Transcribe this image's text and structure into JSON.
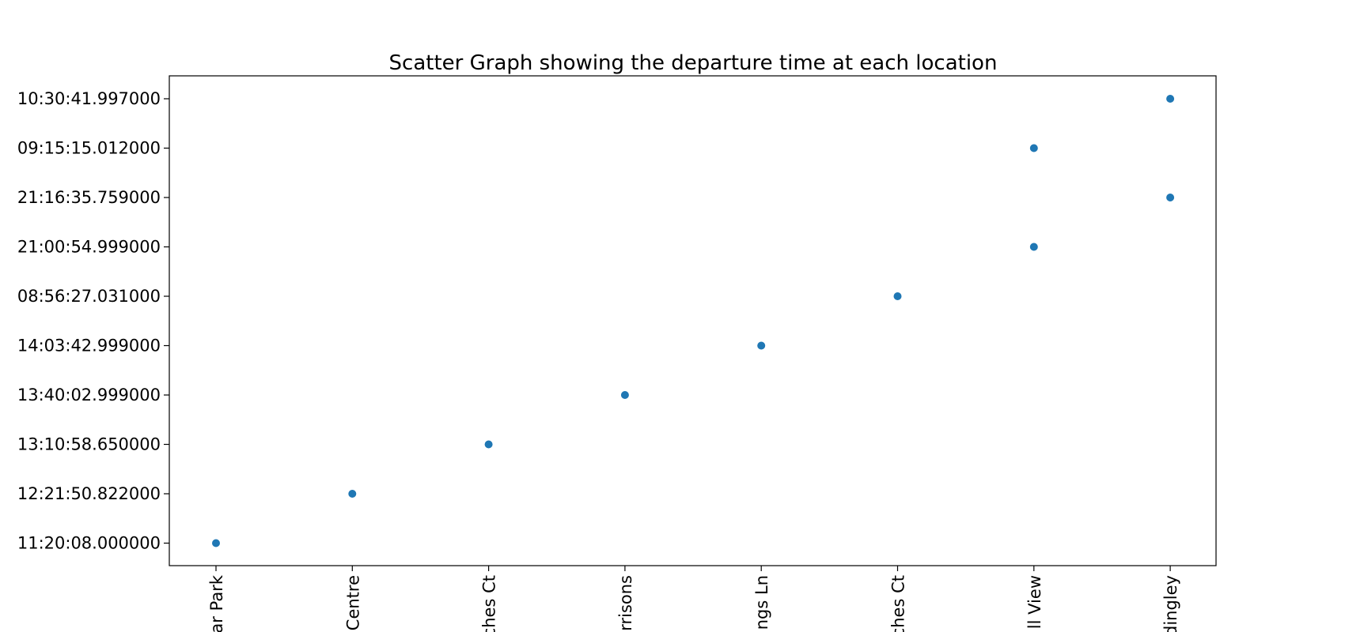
{
  "chart_data": {
    "type": "scatter",
    "title": "Scatter Graph showing the departure time at each location",
    "xlabel": "",
    "ylabel": "",
    "categories": [
      "ar Park",
      "Centre",
      "ches Ct",
      "rrisons",
      "ngs Ln",
      "ches Ct",
      "ll View",
      "dingley"
    ],
    "y_categories": [
      "11:20:08.000000",
      "12:21:50.822000",
      "13:10:58.650000",
      "13:40:02.999000",
      "14:03:42.999000",
      "08:56:27.031000",
      "21:00:54.999000",
      "21:16:35.759000",
      "09:15:15.012000",
      "10:30:41.997000"
    ],
    "points": [
      {
        "x": "ar Park",
        "y": "11:20:08.000000"
      },
      {
        "x": "Centre",
        "y": "12:21:50.822000"
      },
      {
        "x": "ches Ct",
        "y": "13:10:58.650000"
      },
      {
        "x": "rrisons",
        "y": "13:40:02.999000"
      },
      {
        "x": "ngs Ln",
        "y": "14:03:42.999000"
      },
      {
        "x": "ches Ct",
        "y": "08:56:27.031000"
      },
      {
        "x": "ll View",
        "y": "21:00:54.999000"
      },
      {
        "x": "ll View",
        "y": "09:15:15.012000"
      },
      {
        "x": "dingley",
        "y": "21:16:35.759000"
      },
      {
        "x": "dingley",
        "y": "10:30:41.997000"
      }
    ],
    "color": "#1f77b4",
    "grid": false,
    "legend": "none"
  }
}
